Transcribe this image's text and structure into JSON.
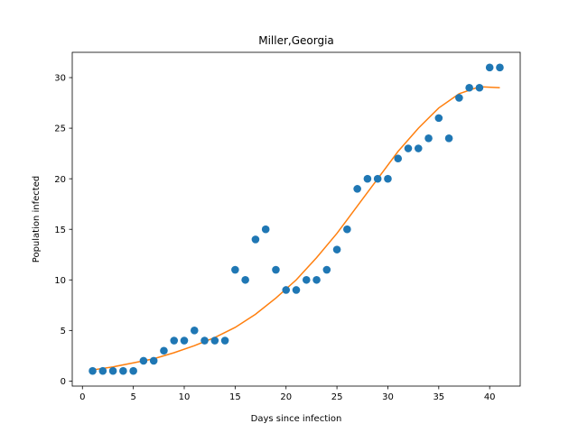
{
  "chart_data": {
    "type": "scatter",
    "title": "Miller,Georgia",
    "xlabel": "Days since infection",
    "ylabel": "Population infected",
    "xlim": [
      -1,
      43
    ],
    "ylim": [
      -0.5,
      32.5
    ],
    "xticks": [
      0,
      5,
      10,
      15,
      20,
      25,
      30,
      35,
      40
    ],
    "yticks": [
      0,
      5,
      10,
      15,
      20,
      25,
      30
    ],
    "grid": false,
    "legend": "none",
    "series": [
      {
        "kind": "scatter",
        "color": "#1f77b4",
        "x": [
          1,
          2,
          3,
          4,
          5,
          6,
          7,
          8,
          9,
          10,
          11,
          12,
          13,
          14,
          15,
          16,
          17,
          18,
          19,
          20,
          21,
          22,
          23,
          24,
          25,
          26,
          27,
          28,
          29,
          30,
          31,
          32,
          33,
          34,
          35,
          36,
          37,
          38,
          39,
          40,
          41
        ],
        "y": [
          1,
          1,
          1,
          1,
          1,
          2,
          2,
          3,
          4,
          4,
          5,
          4,
          4,
          4,
          11,
          10,
          14,
          15,
          11,
          9,
          9,
          10,
          10,
          11,
          13,
          15,
          19,
          20,
          20,
          20,
          22,
          23,
          23,
          24,
          26,
          24,
          28,
          29,
          29,
          31,
          31
        ]
      },
      {
        "kind": "line",
        "color": "#ff7f0e",
        "x": [
          1,
          3,
          5,
          7,
          9,
          11,
          13,
          15,
          17,
          19,
          21,
          23,
          25,
          27,
          29,
          31,
          33,
          35,
          37,
          39,
          41
        ],
        "y": [
          1.1,
          1.4,
          1.8,
          2.2,
          2.8,
          3.5,
          4.3,
          5.3,
          6.6,
          8.2,
          10.0,
          12.2,
          14.6,
          17.3,
          20.0,
          22.7,
          25.0,
          27.0,
          28.4,
          29.1,
          29.0
        ]
      }
    ]
  }
}
